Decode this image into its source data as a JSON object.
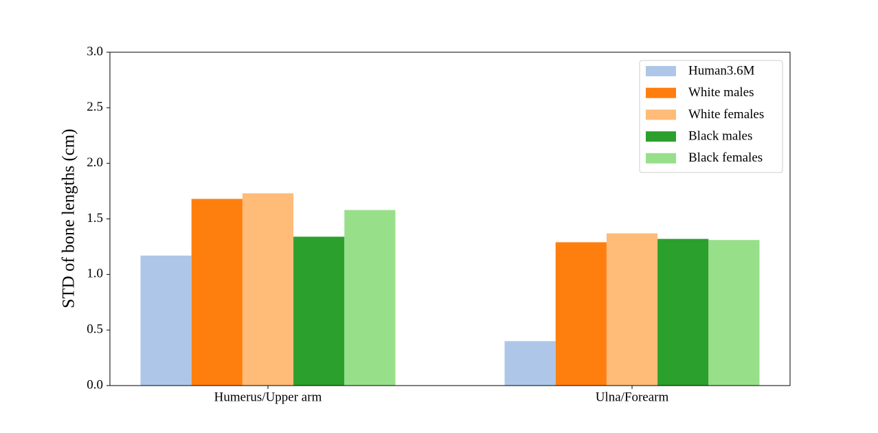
{
  "chart_data": {
    "type": "bar",
    "ylabel": "STD of bone lengths (cm)",
    "categories": [
      "Humerus/Upper arm",
      "Ulna/Forearm"
    ],
    "series": [
      {
        "name": "Human3.6M",
        "color": "#aec7e8",
        "values": [
          1.17,
          0.4
        ]
      },
      {
        "name": "White males",
        "color": "#ff7f0e",
        "values": [
          1.68,
          1.29
        ]
      },
      {
        "name": "White females",
        "color": "#ffbb78",
        "values": [
          1.73,
          1.37
        ]
      },
      {
        "name": "Black males",
        "color": "#2ca02c",
        "values": [
          1.34,
          1.32
        ]
      },
      {
        "name": "Black females",
        "color": "#98df8a",
        "values": [
          1.58,
          1.31
        ]
      }
    ],
    "ylim": [
      0,
      3
    ],
    "yticks": [
      {
        "value": 0,
        "label": "0.0"
      },
      {
        "value": 0.5,
        "label": "0.5"
      },
      {
        "value": 1,
        "label": "1.0"
      },
      {
        "value": 1.5,
        "label": "1.5"
      },
      {
        "value": 2,
        "label": "2.0"
      },
      {
        "value": 2.5,
        "label": "2.5"
      },
      {
        "value": 3,
        "label": "3.0"
      }
    ],
    "legend": "upper right"
  }
}
